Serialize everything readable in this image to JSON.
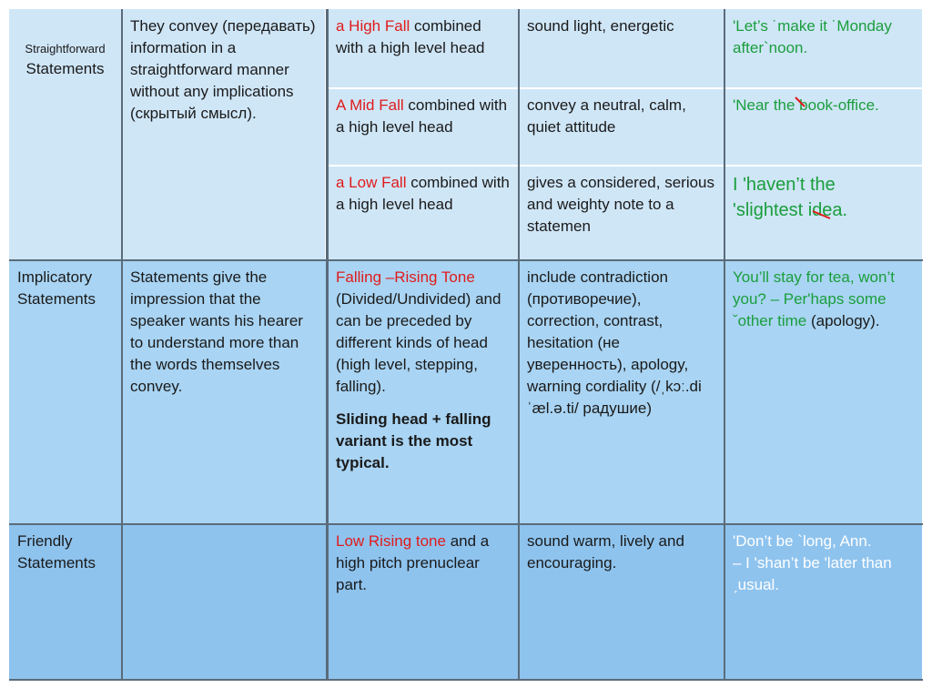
{
  "rows": [
    {
      "type_label": "Straightforward",
      "type_label2": "Statements",
      "description": "They convey (передавать) information in a straightforward manner without any implications (скрытый смысл).",
      "sub": [
        {
          "tone": "a High Fall",
          "tone_rest": " combined with a high level head",
          "effect": "sound light, energetic",
          "example": "'Let’s ˙make it ˙Monday after`noon."
        },
        {
          "tone": "A Mid Fall",
          "tone_rest": " combined with a high level head",
          "effect": "convey a neutral, calm, quiet attitude",
          "example": "'Near the book-office."
        },
        {
          "tone": "a Low Fall",
          "tone_rest": " combined with a high level head",
          "effect": "gives a considered, serious and weighty note to a statemen",
          "example_line1": "I 'haven’t the",
          "example_line2": "'slightest  idea."
        }
      ]
    },
    {
      "type_label": "Implicatory Statements",
      "description": "Statements give the impression that the speaker wants his hearer to understand more than the words themselves convey.",
      "tone": "Falling –Rising Tone",
      "tone_rest": " (Divided/Undivided) and can be preceded by different kinds of head (high level, stepping, falling).",
      "tone_bold": "Sliding head + falling variant is the most typical.",
      "effect": "include contradiction (противоречие), correction, contrast, hesitation (не уверенность), apology, warning cordiality (/ˌkɔː.diˈæl.ə.ti/ радушие)",
      "example_green": "You’ll stay for tea, won’t you? – Per'haps some ˇother time",
      "example_rest": " (apology)."
    },
    {
      "type_label": "Friendly Statements",
      "description": "",
      "tone": "Low Rising tone",
      "tone_rest": " and a high pitch prenuclear part.",
      "effect": "sound warm, lively and encouraging.",
      "example_line1": "'Don’t be `long, Ann.",
      "example_line2": "– I 'shan’t be 'later than ˏusual."
    }
  ],
  "colors": {
    "row1": "#cfe6f7",
    "row2": "#a9d4f3",
    "row3": "#8ec3ee",
    "tone_red": "#e01b1b",
    "example_green": "#1a9e3c"
  }
}
